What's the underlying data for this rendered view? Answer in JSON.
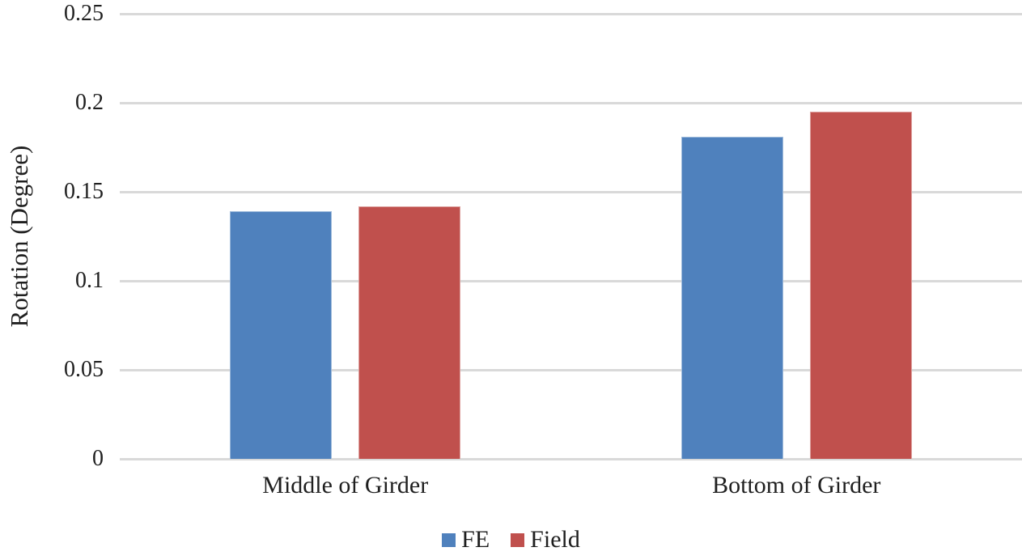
{
  "figure": {
    "background": "#FFFFFF",
    "text_color": "#1F1F1F",
    "gridline_color": "#D9D9D9"
  },
  "chart_data": {
    "type": "bar",
    "title": "",
    "xlabel": "",
    "ylabel": "Rotation (Degree)",
    "categories": [
      "Middle of Girder",
      "Bottom of Girder"
    ],
    "series": [
      {
        "name": "FE",
        "color": "#4F81BD",
        "values": [
          0.139,
          0.181
        ]
      },
      {
        "name": "Field",
        "color": "#C0504D",
        "values": [
          0.142,
          0.195
        ]
      }
    ],
    "ylim": [
      0,
      0.25
    ],
    "yticks": [
      0,
      0.05,
      0.1,
      0.15,
      0.2,
      0.25
    ],
    "grid": true,
    "legend_position": "bottom"
  }
}
